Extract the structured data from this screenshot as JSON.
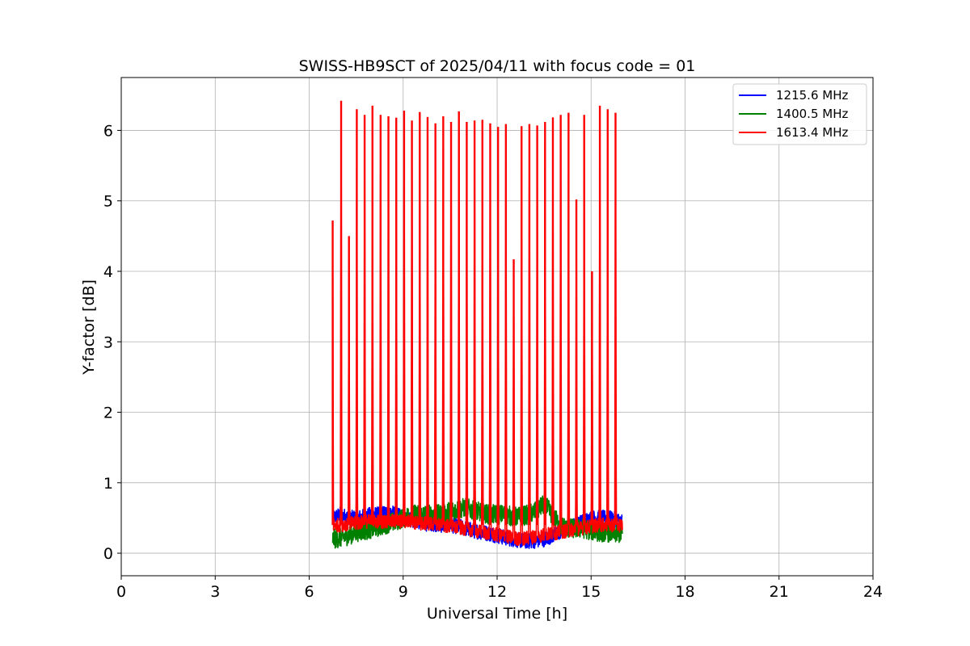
{
  "chart_data": {
    "type": "line",
    "title": "SWISS-HB9SCT of 2025/04/11 with focus code = 01",
    "xlabel": "Universal Time [h]",
    "ylabel": "Y-factor [dB]",
    "xlim": [
      0,
      24
    ],
    "ylim": [
      -0.32,
      6.75
    ],
    "xticks": [
      0,
      3,
      6,
      9,
      12,
      15,
      18,
      21,
      24
    ],
    "yticks": [
      0,
      1,
      2,
      3,
      4,
      5,
      6
    ],
    "xtick_labels": [
      "0",
      "3",
      "6",
      "9",
      "12",
      "15",
      "18",
      "21",
      "24"
    ],
    "ytick_labels": [
      "0",
      "1",
      "2",
      "3",
      "4",
      "5",
      "6"
    ],
    "grid": true,
    "legend_position": "top-right",
    "series": [
      {
        "name": "1215.6 MHz",
        "color": "#0000ff",
        "x": [
          6.75,
          7.0,
          7.25,
          7.5,
          7.75,
          8.0,
          8.25,
          8.5,
          8.75,
          9.0,
          9.25,
          9.5,
          9.75,
          10.0,
          10.25,
          10.5,
          10.75,
          11.0,
          11.25,
          11.5,
          11.75,
          12.0,
          12.25,
          12.5,
          12.75,
          13.0,
          13.25,
          13.5,
          13.75,
          14.0,
          14.25,
          14.5,
          14.75,
          15.0,
          15.25,
          15.5,
          15.75,
          16.0
        ],
        "y": [
          0.5,
          0.55,
          0.5,
          0.5,
          0.52,
          0.55,
          0.55,
          0.58,
          0.55,
          0.5,
          0.48,
          0.45,
          0.42,
          0.42,
          0.4,
          0.4,
          0.38,
          0.35,
          0.32,
          0.3,
          0.28,
          0.25,
          0.22,
          0.2,
          0.18,
          0.17,
          0.18,
          0.2,
          0.25,
          0.3,
          0.35,
          0.4,
          0.45,
          0.5,
          0.5,
          0.5,
          0.48,
          0.45
        ]
      },
      {
        "name": "1400.5 MHz",
        "color": "#008000",
        "x": [
          6.75,
          7.0,
          7.25,
          7.5,
          7.75,
          8.0,
          8.25,
          8.5,
          8.75,
          9.0,
          9.25,
          9.5,
          9.75,
          10.0,
          10.25,
          10.5,
          10.75,
          11.0,
          11.25,
          11.5,
          11.75,
          12.0,
          12.25,
          12.5,
          12.75,
          13.0,
          13.25,
          13.5,
          13.75,
          14.0,
          14.25,
          14.5,
          14.75,
          15.0,
          15.25,
          15.5,
          15.75,
          16.0
        ],
        "y": [
          0.2,
          0.22,
          0.25,
          0.3,
          0.32,
          0.35,
          0.38,
          0.42,
          0.45,
          0.5,
          0.55,
          0.55,
          0.55,
          0.55,
          0.55,
          0.6,
          0.62,
          0.65,
          0.6,
          0.58,
          0.55,
          0.55,
          0.55,
          0.52,
          0.52,
          0.55,
          0.6,
          0.7,
          0.55,
          0.4,
          0.35,
          0.35,
          0.35,
          0.32,
          0.3,
          0.3,
          0.28,
          0.28
        ]
      },
      {
        "name": "1613.4 MHz",
        "color": "#ff0000",
        "x": [
          6.75,
          7.0,
          7.25,
          7.5,
          7.75,
          8.0,
          8.25,
          8.5,
          8.75,
          9.0,
          9.25,
          9.5,
          9.75,
          10.0,
          10.25,
          10.5,
          10.75,
          11.0,
          11.25,
          11.5,
          11.75,
          12.0,
          12.25,
          12.5,
          12.75,
          13.0,
          13.25,
          13.5,
          13.75,
          14.0,
          14.25,
          14.5,
          14.75,
          15.0,
          15.25,
          15.5,
          15.75,
          16.0
        ],
        "y": [
          0.4,
          0.4,
          0.42,
          0.42,
          0.45,
          0.45,
          0.45,
          0.45,
          0.45,
          0.45,
          0.45,
          0.42,
          0.42,
          0.42,
          0.4,
          0.38,
          0.36,
          0.35,
          0.32,
          0.3,
          0.28,
          0.26,
          0.24,
          0.22,
          0.2,
          0.22,
          0.24,
          0.26,
          0.28,
          0.3,
          0.32,
          0.34,
          0.36,
          0.38,
          0.4,
          0.4,
          0.4,
          0.4
        ]
      }
    ],
    "spikes": {
      "series": "1613.4 MHz",
      "x": [
        6.75,
        7.02,
        7.27,
        7.52,
        7.77,
        8.02,
        8.28,
        8.53,
        8.78,
        9.03,
        9.28,
        9.53,
        9.78,
        10.03,
        10.28,
        10.53,
        10.78,
        11.03,
        11.28,
        11.53,
        11.78,
        12.03,
        12.28,
        12.53,
        12.78,
        13.03,
        13.28,
        13.53,
        13.78,
        14.03,
        14.28,
        14.53,
        14.78,
        15.03,
        15.28,
        15.53,
        15.78
      ],
      "y": [
        4.72,
        6.42,
        4.5,
        6.3,
        6.22,
        6.35,
        6.22,
        6.2,
        6.18,
        6.28,
        6.14,
        6.26,
        6.19,
        6.1,
        6.2,
        6.12,
        6.27,
        6.12,
        6.14,
        6.15,
        6.1,
        6.05,
        6.09,
        4.17,
        6.06,
        6.09,
        6.07,
        6.12,
        6.18,
        6.22,
        6.25,
        5.02,
        6.22,
        4.0,
        6.35,
        6.3,
        6.25
      ]
    }
  }
}
